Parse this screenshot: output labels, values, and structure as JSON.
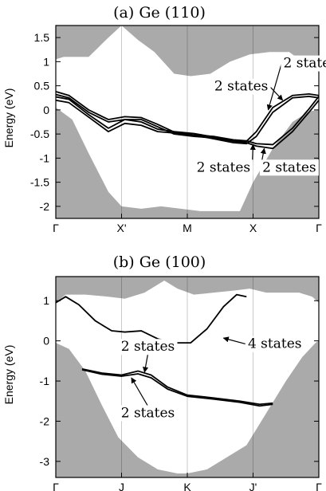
{
  "chart_data": [
    {
      "type": "line",
      "title": "(a) Ge (110)",
      "ylabel": "Energy (eV)",
      "ylim": [
        -2.25,
        1.75
      ],
      "yticks": [
        1.5,
        1,
        0.5,
        0,
        -0.5,
        -1,
        -1.5,
        -2
      ],
      "ytick_labels": [
        "1.5",
        "1",
        "0.5",
        "0",
        "-0.5",
        "-1",
        "-1.5",
        "-2"
      ],
      "xlim": [
        0,
        4
      ],
      "xticks": [
        0,
        1,
        2,
        3,
        4
      ],
      "xtick_labels": [
        "Γ",
        "X'",
        "M",
        "X",
        "Γ"
      ],
      "fill_color": "#aaaaaa",
      "line_color": "#000000",
      "gap_upper": {
        "x": [
          0,
          0.12,
          0.5,
          0.8,
          1.0,
          1.25,
          1.5,
          1.8,
          2.05,
          2.35,
          2.65,
          2.95,
          3.25,
          3.55,
          3.8,
          4.0
        ],
        "y": [
          1.05,
          1.1,
          1.1,
          1.5,
          1.75,
          1.45,
          1.2,
          0.75,
          0.7,
          0.75,
          1.0,
          1.15,
          1.2,
          1.2,
          0.95,
          0.78
        ]
      },
      "gap_lower": {
        "x": [
          0,
          0.25,
          0.5,
          0.8,
          1.0,
          1.3,
          1.6,
          1.9,
          2.2,
          2.5,
          2.8,
          3.0,
          3.3,
          3.6,
          3.85,
          4.0
        ],
        "y": [
          0.05,
          -0.2,
          -0.9,
          -1.7,
          -2.0,
          -2.05,
          -2.0,
          -2.05,
          -2.1,
          -2.1,
          -2.1,
          -1.5,
          -0.8,
          -0.25,
          -0.03,
          0.0
        ]
      },
      "series": [
        {
          "x": [
            0,
            0.2,
            0.5,
            0.8,
            1.05,
            1.3,
            1.55,
            1.8,
            2.1,
            2.4,
            2.7,
            2.9,
            3.05,
            3.3,
            3.6,
            3.85,
            4.0
          ],
          "y": [
            0.2,
            0.15,
            -0.15,
            -0.45,
            -0.28,
            -0.32,
            -0.45,
            -0.48,
            -0.52,
            -0.6,
            -0.68,
            -0.7,
            -0.55,
            -0.05,
            0.25,
            0.28,
            0.25
          ]
        },
        {
          "x": [
            0,
            0.2,
            0.5,
            0.8,
            1.05,
            1.3,
            1.55,
            1.8,
            2.1,
            2.4,
            2.7,
            2.9,
            3.05,
            3.3,
            3.6,
            3.85,
            4.0
          ],
          "y": [
            0.27,
            0.22,
            -0.1,
            -0.38,
            -0.2,
            -0.25,
            -0.4,
            -0.45,
            -0.49,
            -0.56,
            -0.64,
            -0.65,
            -0.45,
            0.05,
            0.3,
            0.33,
            0.3
          ]
        },
        {
          "x": [
            0,
            0.2,
            0.5,
            0.8,
            1.05,
            1.3,
            1.55,
            1.8,
            2.1,
            2.4,
            2.7,
            2.9,
            3.05,
            3.3,
            3.6,
            3.85,
            4.0
          ],
          "y": [
            0.32,
            0.25,
            -0.05,
            -0.25,
            -0.2,
            -0.2,
            -0.35,
            -0.5,
            -0.55,
            -0.58,
            -0.65,
            -0.68,
            -0.75,
            -0.8,
            -0.45,
            -0.05,
            0.2
          ]
        },
        {
          "x": [
            0,
            0.2,
            0.5,
            0.8,
            1.05,
            1.3,
            1.55,
            1.8,
            2.1,
            2.4,
            2.7,
            2.9,
            3.05,
            3.3,
            3.6,
            3.85,
            4.0
          ],
          "y": [
            0.38,
            0.3,
            0.0,
            -0.2,
            -0.14,
            -0.16,
            -0.3,
            -0.46,
            -0.52,
            -0.55,
            -0.62,
            -0.64,
            -0.7,
            -0.72,
            -0.38,
            0.02,
            0.28
          ]
        }
      ],
      "annotations": [
        {
          "text": "2 states",
          "at": [
            3.87,
            0.88
          ],
          "arrow_to": [
            3.23,
            0.0
          ]
        },
        {
          "text": "2 states",
          "at": [
            2.82,
            0.4
          ],
          "arrow_to": [
            3.45,
            0.2
          ]
        },
        {
          "text": "2 states",
          "at": [
            2.55,
            -1.28
          ],
          "arrow_to": [
            3.0,
            -0.72
          ]
        },
        {
          "text": "2 states",
          "at": [
            3.55,
            -1.28
          ],
          "arrow_to": [
            3.17,
            -0.8
          ]
        }
      ]
    },
    {
      "type": "line",
      "title": "(b) Ge (100)",
      "ylabel": "Energy (eV)",
      "ylim": [
        -3.4,
        1.6
      ],
      "yticks": [
        1,
        0,
        -1,
        -2,
        -3
      ],
      "ytick_labels": [
        "1",
        "0",
        "-1",
        "-2",
        "-3"
      ],
      "xlim": [
        0,
        4
      ],
      "xticks": [
        0,
        1,
        2,
        3,
        4
      ],
      "xtick_labels": [
        "Γ",
        "J",
        "K",
        "J'",
        "Γ"
      ],
      "fill_color": "#aaaaaa",
      "line_color": "#000000",
      "gap_upper": {
        "x": [
          0,
          0.15,
          0.45,
          0.8,
          1.05,
          1.35,
          1.65,
          1.85,
          2.1,
          2.4,
          2.7,
          2.95,
          3.2,
          3.45,
          3.7,
          3.9,
          4.0
        ],
        "y": [
          0.95,
          1.15,
          1.15,
          1.1,
          1.05,
          1.2,
          1.5,
          1.3,
          1.15,
          1.2,
          1.25,
          1.3,
          1.2,
          1.2,
          1.2,
          1.1,
          0.95
        ]
      },
      "gap_lower": {
        "x": [
          0,
          0.2,
          0.45,
          0.7,
          0.95,
          1.25,
          1.55,
          1.85,
          2.0,
          2.3,
          2.6,
          2.9,
          3.2,
          3.5,
          3.75,
          3.95,
          4.0
        ],
        "y": [
          -0.05,
          -0.2,
          -0.75,
          -1.6,
          -2.4,
          -2.9,
          -3.2,
          -3.3,
          -3.3,
          -3.2,
          -2.9,
          -2.6,
          -1.8,
          -1.0,
          -0.4,
          -0.05,
          0.0
        ]
      },
      "series": [
        {
          "x": [
            0,
            0.15,
            0.35,
            0.6,
            0.85,
            1.05,
            1.3,
            1.55,
            1.8,
            2.05,
            2.3,
            2.55,
            2.75,
            2.9
          ],
          "y": [
            0.95,
            1.1,
            0.9,
            0.5,
            0.25,
            0.22,
            0.25,
            0.05,
            -0.05,
            -0.05,
            0.3,
            0.85,
            1.15,
            1.1
          ]
        },
        {
          "x": [
            0.4,
            0.7,
            1.0,
            1.25,
            1.45,
            1.7,
            2.0,
            2.4,
            2.8,
            3.1,
            3.3
          ],
          "y": [
            -0.7,
            -0.8,
            -0.85,
            -0.75,
            -0.85,
            -1.15,
            -1.35,
            -1.42,
            -1.5,
            -1.58,
            -1.55
          ]
        },
        {
          "x": [
            0.4,
            0.7,
            1.0,
            1.25,
            1.45,
            1.7,
            2.0,
            2.4,
            2.8,
            3.1,
            3.3
          ],
          "y": [
            -0.72,
            -0.83,
            -0.88,
            -0.82,
            -0.92,
            -1.2,
            -1.38,
            -1.45,
            -1.53,
            -1.62,
            -1.58
          ]
        }
      ],
      "annotations": [
        {
          "text": "4 states",
          "at": [
            3.33,
            -0.18
          ],
          "arrow_to": [
            2.55,
            0.07
          ]
        },
        {
          "text": "2 states",
          "at": [
            1.4,
            -0.25
          ],
          "arrow_to": [
            1.35,
            -0.78
          ]
        },
        {
          "text": "2 states",
          "at": [
            1.4,
            -1.9
          ],
          "arrow_to": [
            1.15,
            -0.92
          ]
        }
      ]
    }
  ]
}
